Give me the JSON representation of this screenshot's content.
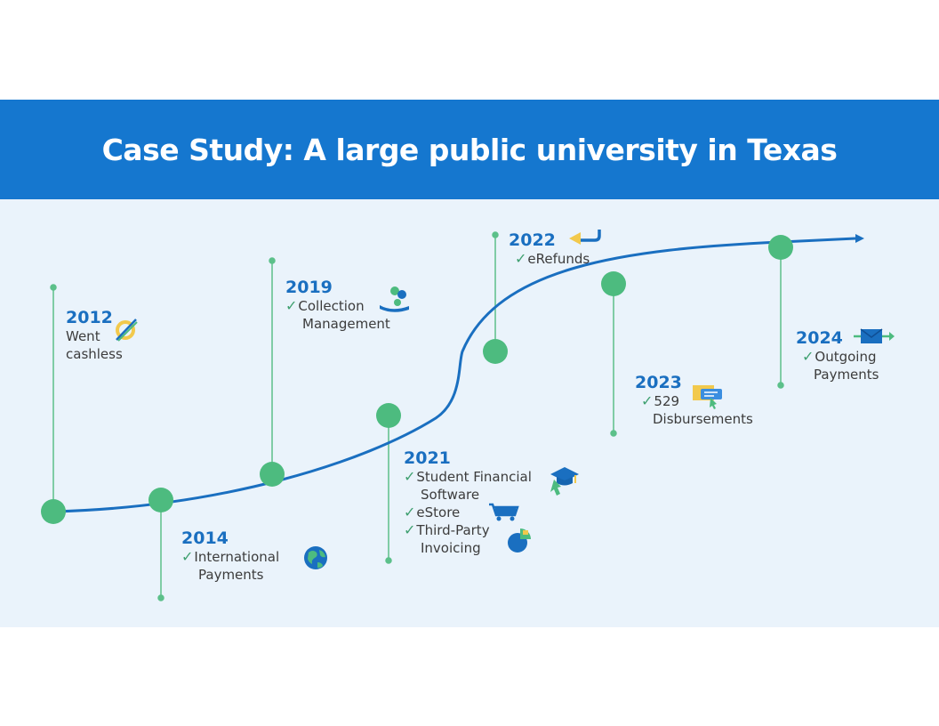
{
  "title": "Case Study: A large public university in Texas",
  "colors": {
    "header_bg": "#1577cf",
    "panel_bg": "#eaf3fb",
    "curve": "#1a6fc0",
    "milestone_node": "#4dbb7f",
    "stem": "#5cc08a",
    "year_text": "#1a6fc0",
    "check": "#3fa070"
  },
  "milestones": [
    {
      "year": "2012",
      "lines": [
        "Went",
        "cashless"
      ],
      "icon": "cashless-icon"
    },
    {
      "year": "2014",
      "lines": [
        "International",
        "Payments"
      ],
      "icon": "globe-icon"
    },
    {
      "year": "2019",
      "lines": [
        "Collection",
        "Management"
      ],
      "icon": "hand-coins-icon"
    },
    {
      "year": "2021",
      "lines": [
        "Student Financial",
        "Software",
        "eStore",
        "Third-Party",
        "Invoicing"
      ],
      "icon": "graduation-cap-icon"
    },
    {
      "year": "2022",
      "lines": [
        "eRefunds"
      ],
      "icon": "return-arrow-icon"
    },
    {
      "year": "2023",
      "lines": [
        "529",
        "Disbursements"
      ],
      "icon": "check-document-icon"
    },
    {
      "year": "2024",
      "lines": [
        "Outgoing",
        "Payments"
      ],
      "icon": "envelope-arrow-icon"
    }
  ]
}
